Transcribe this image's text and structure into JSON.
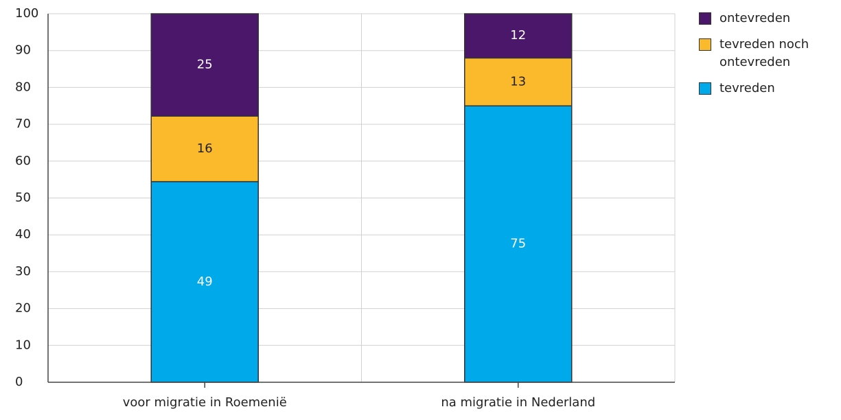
{
  "chart_data": {
    "type": "bar",
    "stack": "percent",
    "categories": [
      "voor migratie in Roemenië",
      "na migratie in Nederland"
    ],
    "series": [
      {
        "name": "tevreden",
        "color": "#00a9e9",
        "values": [
          49,
          75
        ]
      },
      {
        "name": "tevreden noch ontevreden",
        "color": "#fbba2c",
        "values": [
          16,
          13
        ]
      },
      {
        "name": "ontevreden",
        "color": "#4a176b",
        "values": [
          25,
          12
        ]
      }
    ],
    "ylim": [
      0,
      100
    ],
    "yticks": [
      0,
      10,
      20,
      30,
      40,
      50,
      60,
      70,
      80,
      90,
      100
    ],
    "grid": true,
    "legend": "right"
  }
}
